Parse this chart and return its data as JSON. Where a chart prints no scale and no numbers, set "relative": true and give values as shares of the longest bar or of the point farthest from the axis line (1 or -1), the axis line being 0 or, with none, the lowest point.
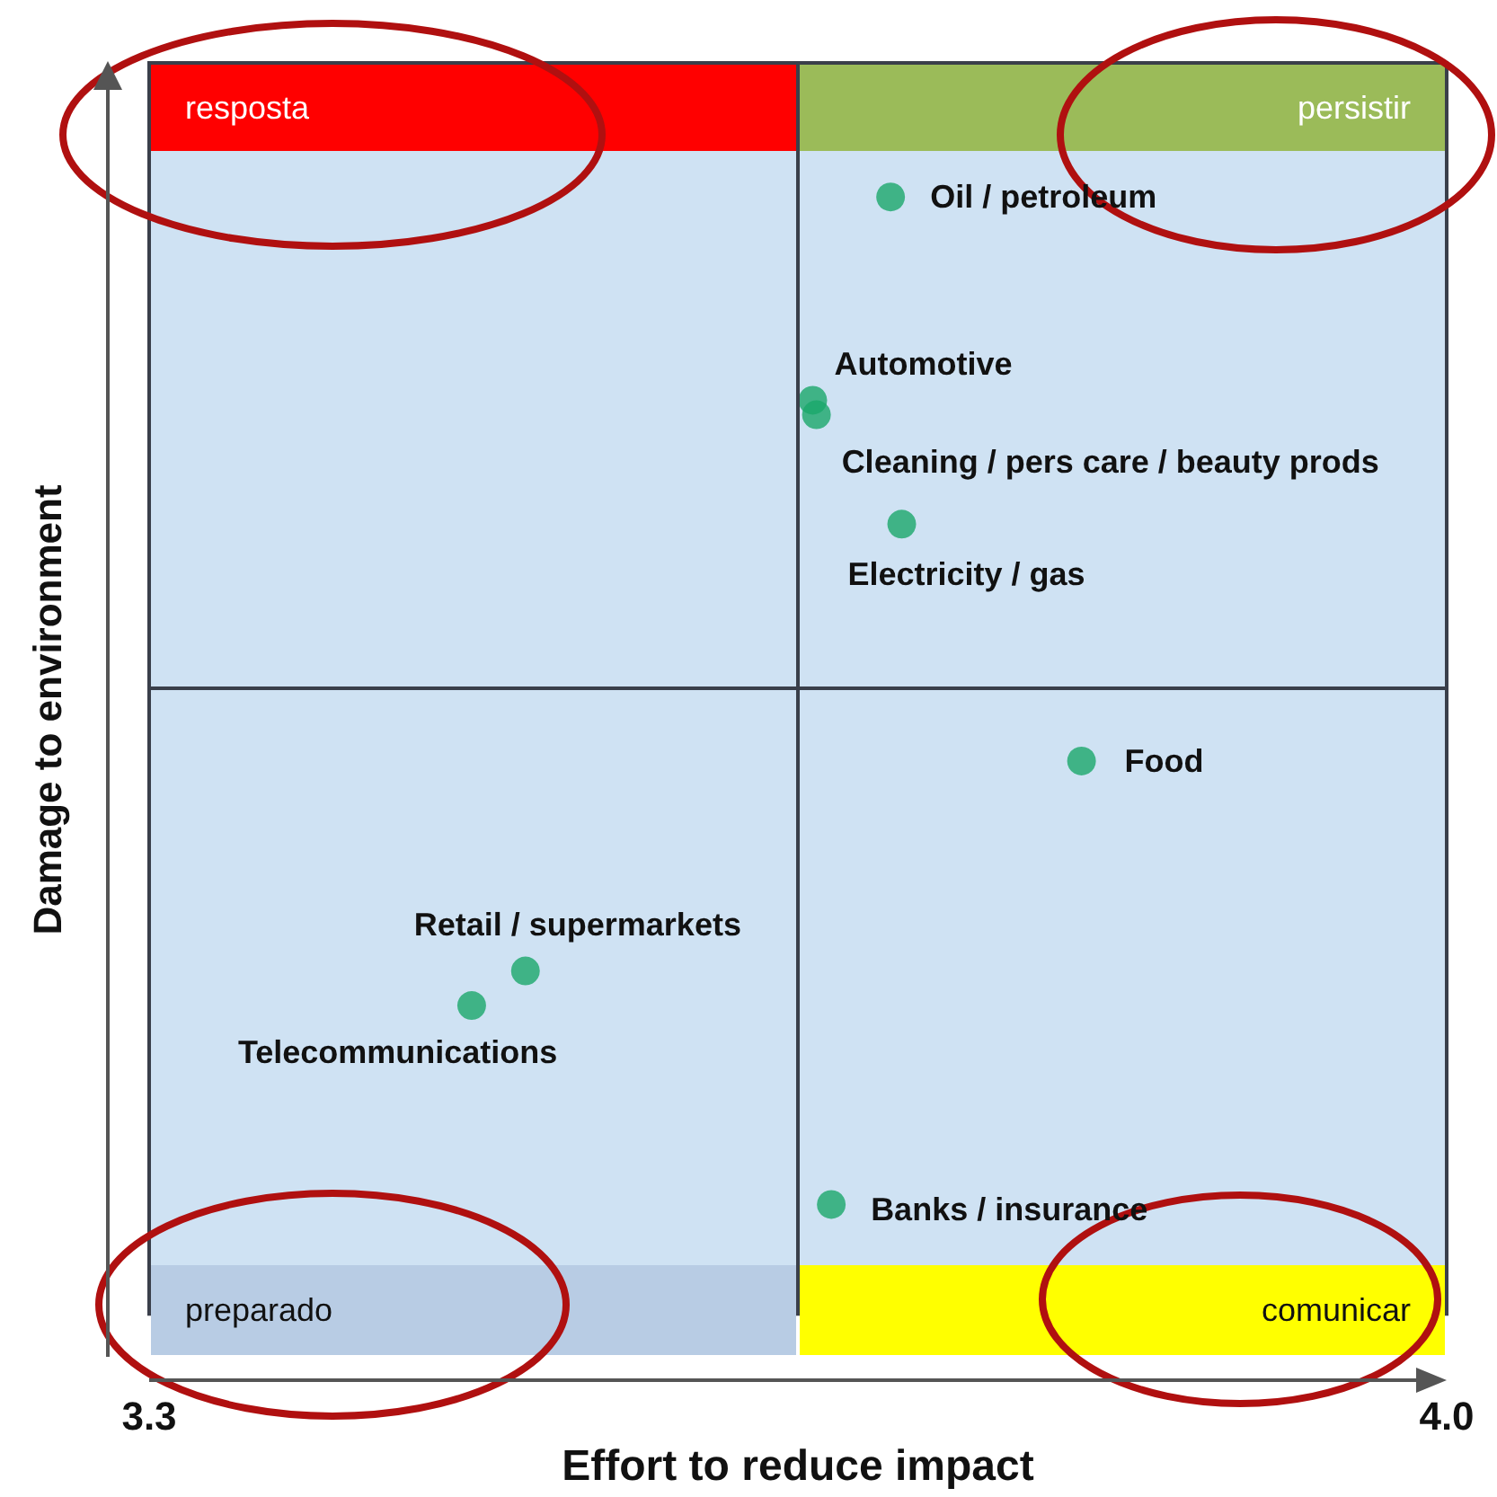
{
  "chart_data": {
    "type": "scatter",
    "xlabel": "Effort to reduce impact",
    "ylabel": "Damage to environment",
    "xlim": [
      3.3,
      4.0
    ],
    "xticks": [
      3.3,
      {
        "value": 4.0,
        "label": "4.0"
      }
    ],
    "relative": true,
    "tick_labels": "x",
    "marker": "circle",
    "x": [
      3.7,
      3.658,
      3.66,
      3.706,
      3.803,
      3.503,
      3.474,
      3.668
    ],
    "series": [
      {
        "color": "#1aa86a",
        "values": [
          1,
          0.818,
          0.805,
          0.707,
          0.495,
          0.307,
          0.276,
          0.098
        ]
      }
    ],
    "ref_lines": [
      {
        "axis": "x",
        "value": 3.65,
        "color": "#3a3f4a"
      },
      {
        "axis": "y",
        "value": 0.56,
        "color": "#3a3f4a"
      }
    ],
    "annotations": [
      "resposta",
      "persistir",
      "preparado",
      "comunicar",
      {
        "text": "Oil / petroleum",
        "x": 3.7,
        "y": 1
      },
      {
        "text": "Automotive",
        "x": 3.658,
        "y": 0.818
      },
      {
        "text": "Cleaning / pers care / beauty prods",
        "x": 3.66,
        "y": 0.805
      },
      {
        "text": "Electricity / gas",
        "x": 3.706,
        "y": 0.707
      },
      {
        "text": "Food",
        "x": 3.803,
        "y": 0.495
      },
      {
        "text": "Retail / supermarkets",
        "x": 3.503,
        "y": 0.307
      },
      {
        "text": "Telecommunications",
        "x": 3.474,
        "y": 0.276
      },
      {
        "text": "Banks / insurance",
        "x": 3.668,
        "y": 0.098
      }
    ]
  }
}
